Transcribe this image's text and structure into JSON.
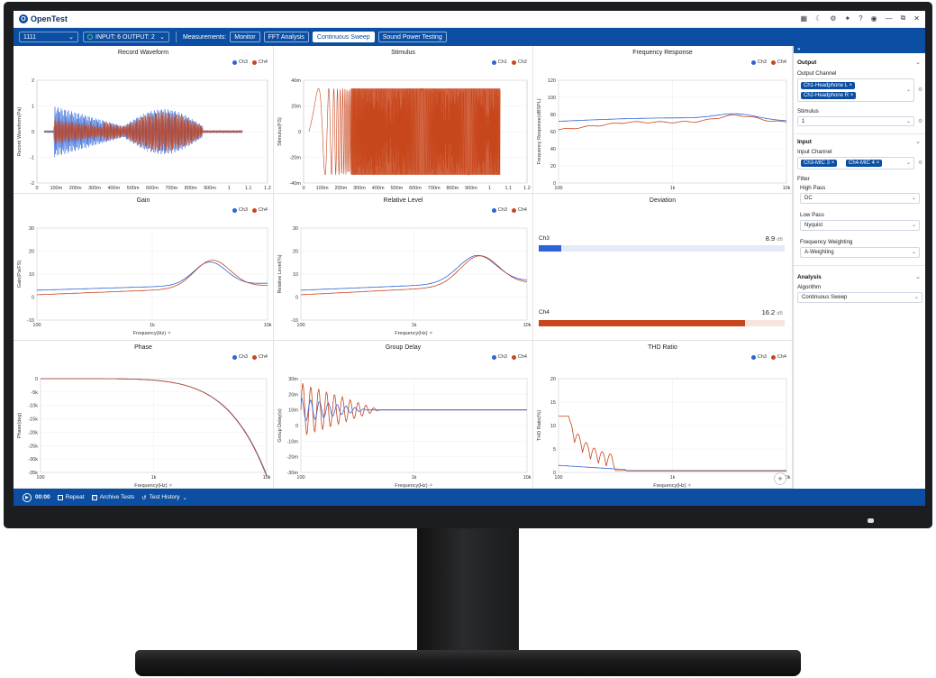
{
  "app": {
    "name": "OpenTest",
    "logo_letter": "O"
  },
  "titlebar_icons": [
    "grid-icon",
    "moon-icon",
    "settings-icon",
    "debug-icon",
    "help-icon",
    "user-icon",
    "minimize-icon",
    "restore-icon",
    "close-icon"
  ],
  "toolbar": {
    "project": "1111",
    "io": "INPUT: 6  OUTPUT: 2",
    "measurements_label": "Measurements:",
    "modes": [
      "Monitor",
      "FFT Analysis",
      "Continuous Sweep",
      "Sound Power Testing"
    ],
    "active_mode": "Continuous Sweep"
  },
  "colors": {
    "ch_blue": "#2d63d8",
    "ch_red": "#c8461c",
    "brand": "#0b4ea2"
  },
  "panels": {
    "record": {
      "title": "Record Waveform",
      "legend": [
        "Ch3",
        "Ch4"
      ],
      "ylabel": "Record Waveform(Pa)",
      "xlabel": "Time(s) ✧",
      "yticks": [
        "2",
        "1",
        "0",
        "-1",
        "-2"
      ],
      "xticks": [
        "0",
        "100m",
        "200m",
        "300m",
        "400m",
        "500m",
        "600m",
        "700m",
        "800m",
        "900m",
        "1",
        "1.1",
        "1.2"
      ]
    },
    "stimulus": {
      "title": "Stimulus",
      "legend": [
        "Ch1",
        "Ch2"
      ],
      "ylabel": "Stimulus(FS)",
      "xlabel": "Time(s) ✧",
      "yticks": [
        "40m",
        "20m",
        "0",
        "-20m",
        "-40m"
      ],
      "xticks": [
        "0",
        "100m",
        "200m",
        "300m",
        "400m",
        "500m",
        "600m",
        "700m",
        "800m",
        "900m",
        "1",
        "1.1",
        "1.2"
      ]
    },
    "freq": {
      "title": "Frequency Response",
      "legend": [
        "Ch3",
        "Ch4"
      ],
      "ylabel": "Frequency Response(dBSPL)",
      "xlabel": "Frequency(Hz) ✧",
      "yticks": [
        "120",
        "100",
        "80",
        "60",
        "40",
        "20",
        "0"
      ],
      "xticks": [
        "100",
        "1k",
        "10k"
      ]
    },
    "gain": {
      "title": "Gain",
      "legend": [
        "Ch3",
        "Ch4"
      ],
      "ylabel": "Gain(Pa/FS)",
      "xlabel": "Frequency(Hz) ✧",
      "yticks": [
        "30",
        "20",
        "10",
        "0",
        "-10"
      ],
      "xticks": [
        "100",
        "1k",
        "10k"
      ]
    },
    "relative": {
      "title": "Relative Level",
      "legend": [
        "Ch3",
        "Ch4"
      ],
      "ylabel": "Relative Level(%)",
      "xlabel": "Frequency(Hz) ✧",
      "yticks": [
        "30",
        "20",
        "10",
        "0",
        "-10"
      ],
      "xticks": [
        "100",
        "1k",
        "10k"
      ]
    },
    "deviation": {
      "title": "Deviation",
      "rows": [
        {
          "name": "Ch3",
          "value": "8.9",
          "unit": "dB",
          "fraction": 0.09
        },
        {
          "name": "Ch4",
          "value": "16.2",
          "unit": "dB",
          "fraction": 0.84
        }
      ]
    },
    "phase": {
      "title": "Phase",
      "legend": [
        "Ch3",
        "Ch4"
      ],
      "ylabel": "Phase(deg)",
      "xlabel": "Frequency(Hz) ✧",
      "yticks": [
        "0",
        "-5k",
        "-10k",
        "-15k",
        "-20k",
        "-25k",
        "-30k",
        "-35k"
      ],
      "xticks": [
        "100",
        "1k",
        "10k"
      ]
    },
    "group": {
      "title": "Group Delay",
      "legend": [
        "Ch3",
        "Ch4"
      ],
      "ylabel": "Group Delay(s)",
      "xlabel": "Frequency(Hz) ✧",
      "yticks": [
        "30m",
        "20m",
        "10m",
        "0",
        "-10m",
        "-20m",
        "-30m"
      ],
      "xticks": [
        "100",
        "1k",
        "10k"
      ]
    },
    "thd": {
      "title": "THD Ratio",
      "legend": [
        "Ch3",
        "Ch4"
      ],
      "ylabel": "THD Ratio(%)",
      "xlabel": "Frequency(Hz) ✧",
      "yticks": [
        "20",
        "15",
        "10",
        "5",
        "0"
      ],
      "xticks": [
        "100",
        "1k",
        "10k"
      ]
    }
  },
  "sidebar": {
    "collapse": "»",
    "output": {
      "title": "Output",
      "channel_label": "Output Channel",
      "channels": [
        "Ch1-Headphone L",
        "Ch2-Headphone R"
      ],
      "stimulus_label": "Stimulus",
      "stimulus_value": "1"
    },
    "input": {
      "title": "Input",
      "channel_label": "Input Channel",
      "channels": [
        "Ch3-MIC 3",
        "Ch4-MIC 4"
      ],
      "filter_label": "Filter",
      "highpass_label": "High Pass",
      "highpass_value": "DC",
      "lowpass_label": "Low Pass",
      "lowpass_value": "Nyquist",
      "weighting_label": "Frequency Weighting",
      "weighting_value": "A-Weighting"
    },
    "analysis": {
      "title": "Analysis",
      "algorithm_label": "Algorithm",
      "algorithm_value": "Continuous Sweep"
    }
  },
  "statusbar": {
    "time": "00:00",
    "repeat": "Repeat",
    "archive": "Archive Tests",
    "history": "Test History"
  }
}
